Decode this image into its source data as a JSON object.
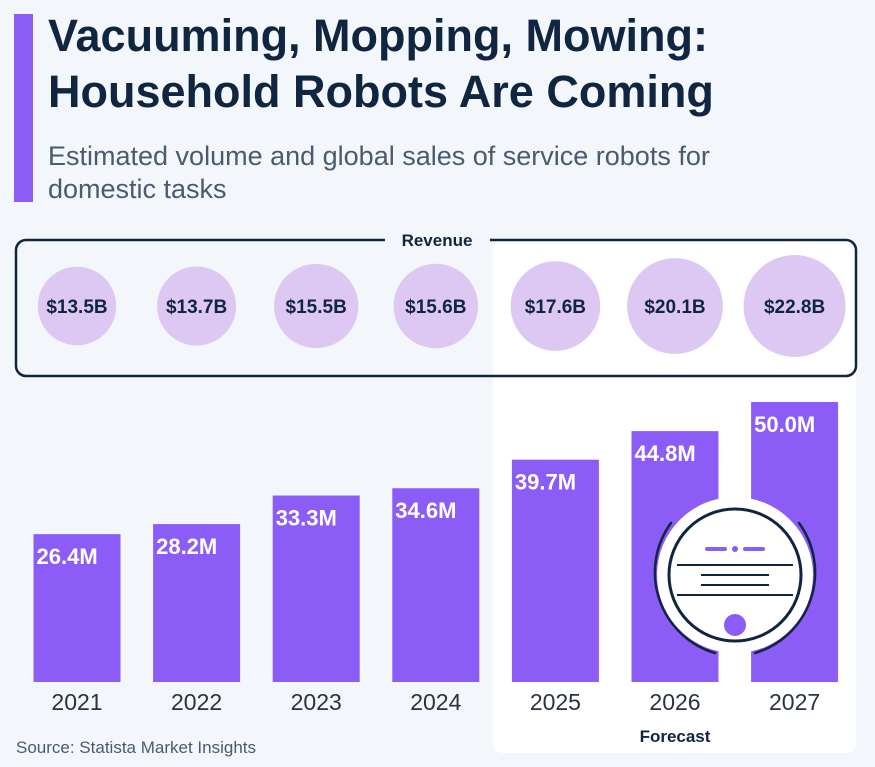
{
  "header": {
    "title": "Vacuuming, Mopping, Mowing: Household Robots Are Coming",
    "subtitle": "Estimated volume and global sales of service robots for domestic tasks"
  },
  "footer": {
    "source": "Source: Statista Market Insights"
  },
  "colors": {
    "accent": "#8b5cf6",
    "bubble": "#dcc8f3",
    "navy": "#10253f",
    "forecast_panel": "#ffffff"
  },
  "icon": "robot-vacuum-icon",
  "chart_data": {
    "type": "bar",
    "categories": [
      "2021",
      "2022",
      "2023",
      "2024",
      "2025",
      "2026",
      "2027"
    ],
    "series": [
      {
        "values": [
          26.4,
          28.2,
          33.3,
          34.6,
          39.7,
          44.8,
          50.0
        ],
        "labels": [
          "26.4M",
          "28.2M",
          "33.3M",
          "34.6M",
          "39.7M",
          "44.8M",
          "50.0M"
        ]
      }
    ],
    "revenue": {
      "label": "Revenue",
      "values": [
        13.5,
        13.7,
        15.5,
        15.6,
        17.6,
        20.1,
        22.8
      ],
      "labels": [
        "$13.5B",
        "$13.7B",
        "$15.5B",
        "$15.6B",
        "$17.6B",
        "$20.1B",
        "$22.8B"
      ]
    },
    "forecast": {
      "label": "Forecast",
      "categories": [
        "2025",
        "2026",
        "2027"
      ]
    },
    "ylim": [
      0,
      50
    ]
  }
}
